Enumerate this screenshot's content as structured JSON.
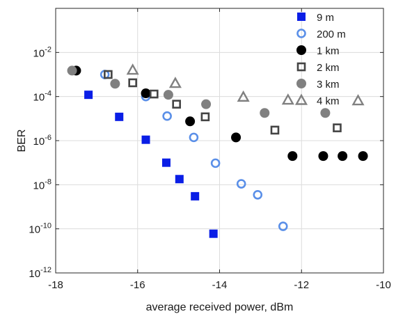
{
  "chart_data": {
    "type": "scatter",
    "title": "",
    "xlabel": "average received power, dBm",
    "ylabel": "BER",
    "xlim": [
      -18,
      -10
    ],
    "ylim_log10": [
      -12,
      0
    ],
    "y_scale": "log",
    "grid": true,
    "legend_position": "top-right",
    "x_ticks": [
      "-18",
      "-16",
      "-14",
      "-12",
      "-10"
    ],
    "y_ticks": [
      {
        "base": "10",
        "exp": "-12",
        "log10": -12
      },
      {
        "base": "10",
        "exp": "-10",
        "log10": -10
      },
      {
        "base": "10",
        "exp": "-8",
        "log10": -8
      },
      {
        "base": "10",
        "exp": "-6",
        "log10": -6
      },
      {
        "base": "10",
        "exp": "-4",
        "log10": -4
      },
      {
        "base": "10",
        "exp": "-2",
        "log10": -2
      }
    ],
    "series": [
      {
        "name": "9 m",
        "marker": "square-filled",
        "color": "#0a1ee6",
        "x": [
          -17.2,
          -16.45,
          -15.8,
          -15.3,
          -14.98,
          -14.6,
          -14.15
        ],
        "y": [
          0.00012,
          1.2e-05,
          1.1e-06,
          1e-07,
          1.8e-08,
          3e-09,
          6e-11
        ]
      },
      {
        "name": "200 m",
        "marker": "circle-open",
        "color": "#5a8fe8",
        "x": [
          -16.8,
          -15.8,
          -15.28,
          -14.63,
          -14.1,
          -13.47,
          -13.07,
          -12.45
        ],
        "y": [
          0.001,
          0.0001,
          1.3e-05,
          1.4e-06,
          9.5e-08,
          1.1e-08,
          3.5e-09,
          1.3e-10
        ]
      },
      {
        "name": "1 km",
        "marker": "circle-filled",
        "color": "#000000",
        "x": [
          -17.5,
          -15.8,
          -14.72,
          -13.6,
          -12.22,
          -11.47,
          -11.0,
          -10.5
        ],
        "y": [
          0.0015,
          0.00014,
          7.5e-06,
          1.4e-06,
          2e-07,
          2e-07,
          2e-07,
          2e-07
        ]
      },
      {
        "name": "2 km",
        "marker": "square-open",
        "color": "#444444",
        "x": [
          -16.72,
          -16.12,
          -15.6,
          -15.05,
          -14.35,
          -12.65,
          -11.13
        ],
        "y": [
          0.001,
          0.00042,
          0.00013,
          4.5e-05,
          1.2e-05,
          3e-06,
          3.8e-06
        ]
      },
      {
        "name": "3 km",
        "marker": "circle-filled",
        "color": "#808080",
        "x": [
          -17.6,
          -16.55,
          -15.25,
          -14.33,
          -12.9,
          -11.42
        ],
        "y": [
          0.0015,
          0.00038,
          0.00012,
          4.5e-05,
          1.8e-05,
          1.8e-05
        ]
      },
      {
        "name": "4 km",
        "marker": "triangle-open",
        "color": "#808080",
        "x": [
          -16.12,
          -15.08,
          -13.42,
          -12.33,
          -10.62
        ],
        "y": [
          0.0016,
          0.0004,
          9.5e-05,
          7e-05,
          6.5e-05
        ]
      }
    ]
  }
}
